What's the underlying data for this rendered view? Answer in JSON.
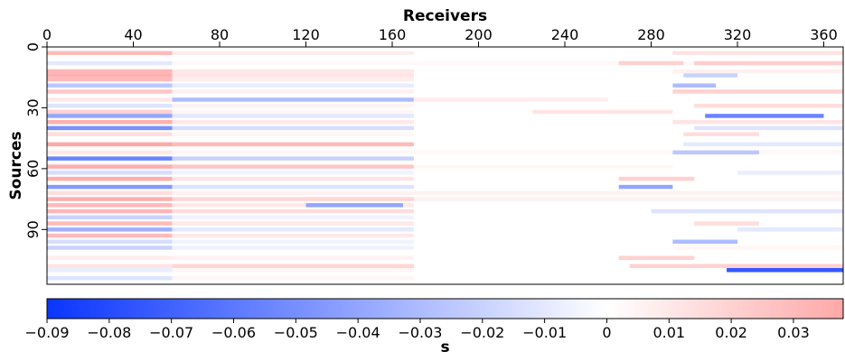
{
  "chart_data": {
    "type": "heatmap",
    "title": "",
    "xlabel": "Receivers",
    "ylabel": "Sources",
    "xlim": [
      0,
      369
    ],
    "ylim": [
      0,
      117
    ],
    "x_ticks": [
      "0",
      "40",
      "80",
      "120",
      "160",
      "200",
      "240",
      "280",
      "320",
      "360"
    ],
    "y_ticks": [
      "0",
      "30",
      "60",
      "90"
    ],
    "colorbar": {
      "label": "s",
      "range": [
        -0.09,
        0.038
      ],
      "ticks": [
        "−0.09",
        "−0.08",
        "−0.07",
        "−0.06",
        "−0.05",
        "−0.04",
        "−0.03",
        "−0.02",
        "−0.01",
        "0",
        "0.01",
        "0.02",
        "0.03"
      ],
      "colors": {
        "negative": "#0a35ff",
        "zero": "#ffffff",
        "positive": "#ffa8a8"
      }
    },
    "bands": [
      {
        "source": 3,
        "segments": [
          [
            0,
            58,
            0.03
          ],
          [
            58,
            170,
            0.008
          ],
          [
            290,
            369,
            0.012
          ]
        ]
      },
      {
        "source": 8,
        "segments": [
          [
            0,
            58,
            -0.01
          ],
          [
            58,
            369,
            0.003
          ],
          [
            265,
            295,
            0.02
          ],
          [
            300,
            369,
            0.022
          ]
        ]
      },
      {
        "source": 12,
        "segments": [
          [
            0,
            58,
            0.032
          ],
          [
            58,
            170,
            0.01
          ],
          [
            290,
            369,
            0.006
          ]
        ]
      },
      {
        "source": 14,
        "segments": [
          [
            0,
            58,
            0.035
          ],
          [
            58,
            170,
            0.012
          ],
          [
            295,
            320,
            -0.02
          ]
        ]
      },
      {
        "source": 16,
        "segments": [
          [
            0,
            58,
            0.03
          ],
          [
            58,
            170,
            0.008
          ]
        ]
      },
      {
        "source": 19,
        "segments": [
          [
            0,
            58,
            -0.025
          ],
          [
            58,
            170,
            -0.008
          ],
          [
            290,
            310,
            -0.03
          ]
        ]
      },
      {
        "source": 22,
        "segments": [
          [
            0,
            58,
            0.025
          ],
          [
            58,
            170,
            0.006
          ],
          [
            290,
            369,
            0.02
          ]
        ]
      },
      {
        "source": 26,
        "segments": [
          [
            0,
            58,
            0.01
          ],
          [
            58,
            170,
            -0.03
          ],
          [
            170,
            260,
            0.008
          ]
        ]
      },
      {
        "source": 29,
        "segments": [
          [
            0,
            58,
            -0.012
          ],
          [
            58,
            170,
            0.005
          ],
          [
            300,
            369,
            0.015
          ]
        ]
      },
      {
        "source": 32,
        "segments": [
          [
            0,
            58,
            0.02
          ],
          [
            58,
            170,
            0.004
          ],
          [
            225,
            290,
            0.012
          ]
        ]
      },
      {
        "source": 34,
        "segments": [
          [
            0,
            58,
            -0.04
          ],
          [
            58,
            170,
            -0.01
          ],
          [
            305,
            360,
            -0.055
          ]
        ]
      },
      {
        "source": 37,
        "segments": [
          [
            0,
            58,
            0.035
          ],
          [
            58,
            170,
            0.01
          ],
          [
            290,
            369,
            0.012
          ]
        ]
      },
      {
        "source": 40,
        "segments": [
          [
            0,
            58,
            -0.05
          ],
          [
            58,
            170,
            -0.015
          ],
          [
            300,
            369,
            -0.012
          ]
        ]
      },
      {
        "source": 43,
        "segments": [
          [
            0,
            58,
            0.015
          ],
          [
            58,
            170,
            0.004
          ],
          [
            295,
            330,
            0.015
          ]
        ]
      },
      {
        "source": 48,
        "segments": [
          [
            0,
            58,
            0.038
          ],
          [
            58,
            170,
            0.03
          ],
          [
            295,
            369,
            -0.01
          ]
        ]
      },
      {
        "source": 52,
        "segments": [
          [
            0,
            58,
            0.01
          ],
          [
            58,
            369,
            0.003
          ],
          [
            290,
            330,
            -0.025
          ]
        ]
      },
      {
        "source": 55,
        "segments": [
          [
            0,
            58,
            -0.055
          ],
          [
            58,
            170,
            -0.02
          ]
        ]
      },
      {
        "source": 59,
        "segments": [
          [
            0,
            58,
            0.035
          ],
          [
            58,
            170,
            0.025
          ],
          [
            170,
            290,
            0.004
          ]
        ]
      },
      {
        "source": 62,
        "segments": [
          [
            0,
            58,
            -0.015
          ],
          [
            58,
            170,
            -0.005
          ],
          [
            320,
            369,
            -0.008
          ]
        ]
      },
      {
        "source": 65,
        "segments": [
          [
            0,
            58,
            0.036
          ],
          [
            58,
            170,
            0.012
          ],
          [
            265,
            300,
            0.02
          ]
        ]
      },
      {
        "source": 69,
        "segments": [
          [
            0,
            58,
            -0.045
          ],
          [
            58,
            170,
            -0.012
          ],
          [
            265,
            290,
            -0.04
          ]
        ]
      },
      {
        "source": 72,
        "segments": [
          [
            0,
            58,
            0.015
          ],
          [
            58,
            369,
            0.006
          ]
        ]
      },
      {
        "source": 75,
        "segments": [
          [
            0,
            58,
            0.035
          ],
          [
            58,
            170,
            0.018
          ],
          [
            170,
            369,
            0.006
          ]
        ]
      },
      {
        "source": 78,
        "segments": [
          [
            0,
            58,
            0.03
          ],
          [
            58,
            170,
            0.01
          ],
          [
            120,
            165,
            -0.04
          ]
        ]
      },
      {
        "source": 81,
        "segments": [
          [
            0,
            58,
            0.032
          ],
          [
            58,
            170,
            0.015
          ],
          [
            280,
            369,
            -0.012
          ]
        ]
      },
      {
        "source": 84,
        "segments": [
          [
            0,
            58,
            -0.02
          ],
          [
            58,
            170,
            -0.006
          ]
        ]
      },
      {
        "source": 87,
        "segments": [
          [
            0,
            58,
            0.03
          ],
          [
            58,
            170,
            0.01
          ],
          [
            300,
            330,
            0.015
          ]
        ]
      },
      {
        "source": 90,
        "segments": [
          [
            0,
            58,
            -0.035
          ],
          [
            58,
            170,
            -0.01
          ],
          [
            320,
            369,
            -0.01
          ]
        ]
      },
      {
        "source": 93,
        "segments": [
          [
            0,
            58,
            0.03
          ],
          [
            58,
            170,
            0.01
          ]
        ]
      },
      {
        "source": 96,
        "segments": [
          [
            0,
            58,
            -0.015
          ],
          [
            58,
            170,
            -0.005
          ],
          [
            290,
            320,
            -0.03
          ]
        ]
      },
      {
        "source": 99,
        "segments": [
          [
            0,
            58,
            -0.02
          ],
          [
            58,
            170,
            -0.006
          ],
          [
            290,
            369,
            0.004
          ]
        ]
      },
      {
        "source": 104,
        "segments": [
          [
            0,
            58,
            0.008
          ],
          [
            58,
            170,
            0.006
          ],
          [
            265,
            300,
            0.02
          ]
        ]
      },
      {
        "source": 108,
        "segments": [
          [
            0,
            58,
            0.012
          ],
          [
            58,
            170,
            0.018
          ],
          [
            270,
            369,
            0.02
          ]
        ]
      },
      {
        "source": 110,
        "segments": [
          [
            0,
            58,
            -0.008
          ],
          [
            58,
            170,
            0.004
          ],
          [
            315,
            369,
            -0.075
          ]
        ]
      },
      {
        "source": 114,
        "segments": [
          [
            0,
            58,
            -0.012
          ],
          [
            58,
            170,
            0.004
          ]
        ]
      }
    ]
  }
}
